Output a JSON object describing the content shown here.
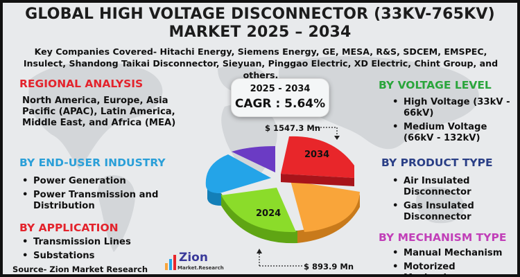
{
  "title_line1": "GLOBAL HIGH VOLTAGE DISCONNECTOR (33KV-765KV)",
  "title_line2": "MARKET 2025 – 2034",
  "companies": "Key Companies Covered- Hitachi Energy, Siemens Energy, GE, MESA, R&S, SDCEM, EMSPEC, Insulect, Shandong Taikai Disconnector, Sieyuan, Pinggao Electric, XD Electric, Chint Group, and others.",
  "regional": {
    "heading": "REGIONAL ANALYSIS",
    "text": "North America, Europe, Asia Pacific (APAC), Latin America, Middle East, and Africa (MEA)"
  },
  "end_user": {
    "heading": "BY END-USER INDUSTRY",
    "items": [
      "Power Generation",
      "Power Transmission and Distribution"
    ]
  },
  "application": {
    "heading": "BY APPLICATION",
    "items": [
      "Transmission Lines",
      "Substations"
    ]
  },
  "voltage": {
    "heading": "BY VOLTAGE LEVEL",
    "items": [
      "High Voltage (33kV - 66kV)",
      "Medium Voltage (66kV - 132kV)"
    ]
  },
  "product": {
    "heading": "BY PRODUCT TYPE",
    "items": [
      "Air Insulated Disconnector",
      "Gas Insulated Disconnector"
    ]
  },
  "mechanism": {
    "heading": "BY MECHANISM TYPE",
    "items": [
      "Manual Mechanism",
      "Motorized Mechanism"
    ]
  },
  "cagr": {
    "years": "2025 - 2034",
    "value": "CAGR : 5.64%"
  },
  "pie": {
    "label_2034": "2034",
    "label_2024": "2024",
    "value_2034": "$ 1547.3 Mn",
    "value_2024": "$ 893.9 Mn"
  },
  "source": "Source- Zion Market Research",
  "logo": {
    "name": "Zion",
    "sub": "Market.Research"
  },
  "colors": {
    "red": "#e3232c",
    "green": "#2aa53b",
    "blue": "#2a9fd8",
    "navy": "#2a3f86",
    "magenta": "#c13fb8",
    "slice_red": "#e8262a",
    "slice_orange": "#f9a53a",
    "slice_green": "#8bdc2a",
    "slice_blue": "#24a4e8",
    "slice_purple": "#6b3bc4"
  }
}
